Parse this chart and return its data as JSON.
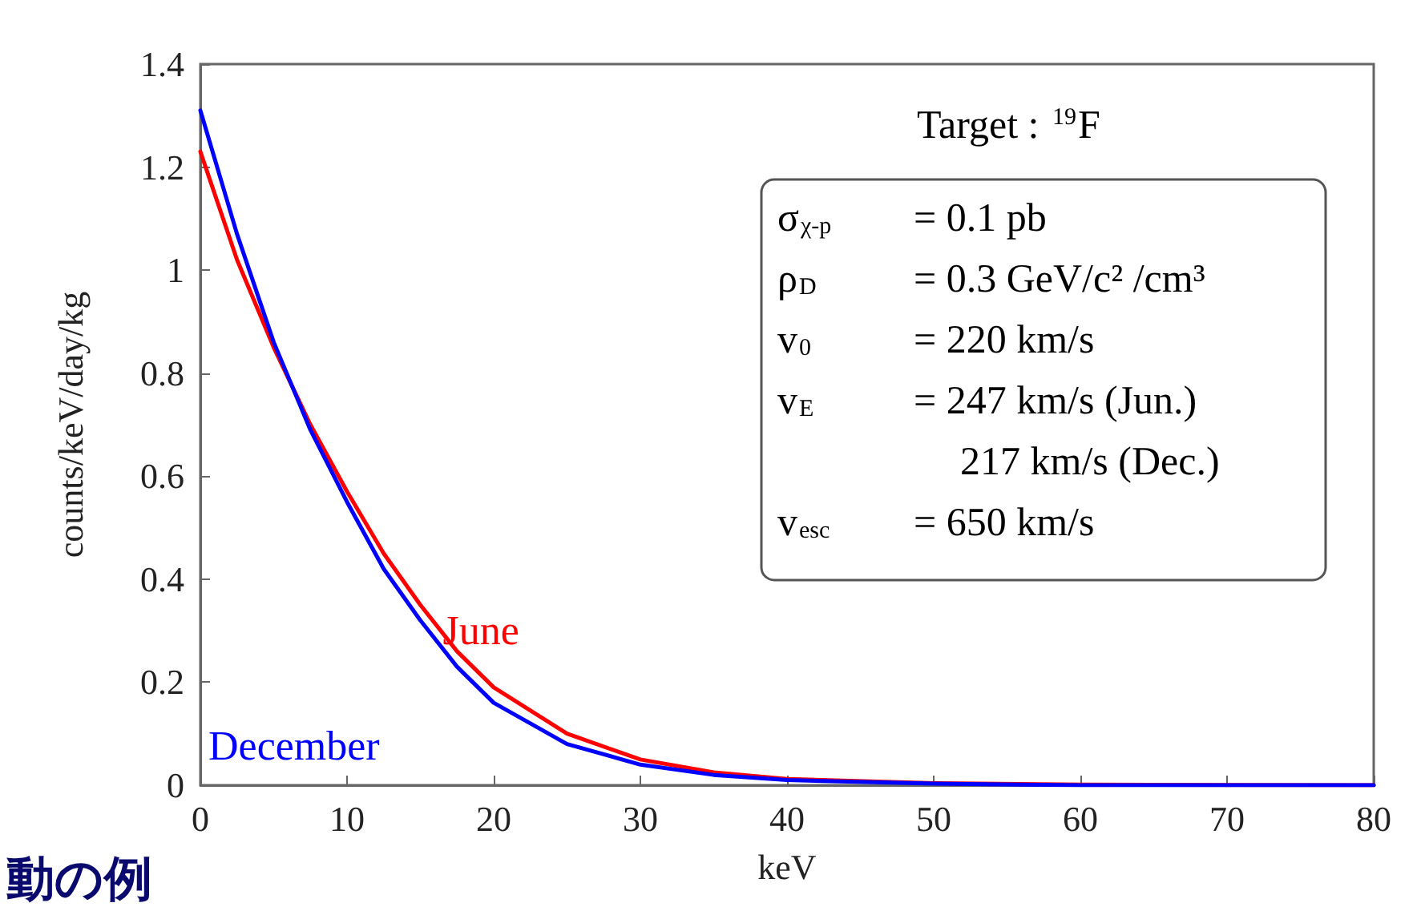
{
  "chart_data": {
    "type": "line",
    "xlabel": "keV",
    "ylabel": "counts/keV/day/kg",
    "xlim": [
      0,
      80
    ],
    "xticks": [
      0,
      10,
      20,
      30,
      40,
      50,
      60,
      70,
      80
    ],
    "ylim": [
      0,
      1.4
    ],
    "yticks": [
      0,
      0.2,
      0.4,
      0.6,
      0.8,
      1,
      1.2,
      1.4
    ],
    "x": [
      0,
      2.5,
      5,
      7.5,
      10,
      12.5,
      15,
      17.5,
      20,
      25,
      30,
      35,
      40,
      50,
      60,
      80
    ],
    "series": [
      {
        "name": "June",
        "color": "#ff0000",
        "values": [
          1.23,
          1.02,
          0.85,
          0.7,
          0.57,
          0.45,
          0.35,
          0.26,
          0.19,
          0.1,
          0.05,
          0.025,
          0.012,
          0.004,
          0.001,
          0
        ]
      },
      {
        "name": "December",
        "color": "#0000ff",
        "values": [
          1.31,
          1.07,
          0.86,
          0.69,
          0.55,
          0.42,
          0.32,
          0.23,
          0.16,
          0.08,
          0.04,
          0.02,
          0.01,
          0.003,
          0,
          0
        ]
      }
    ],
    "grid": false,
    "legend": false,
    "marker": "none",
    "line_style": "solid",
    "annotations": [
      "Target : $^{19}$F",
      "σ$_{χ-p}$ = 0.1 pb",
      "ρ$_{D}$ = 0.3 GeV/c² /cm³",
      "v$_{0}$ = 220 km/s",
      "v$_{E}$ = 247 km/s (Jun.)",
      "217 km/s (Dec.)",
      "v$_{esc}$ = 650 km/s",
      "動の例"
    ]
  }
}
